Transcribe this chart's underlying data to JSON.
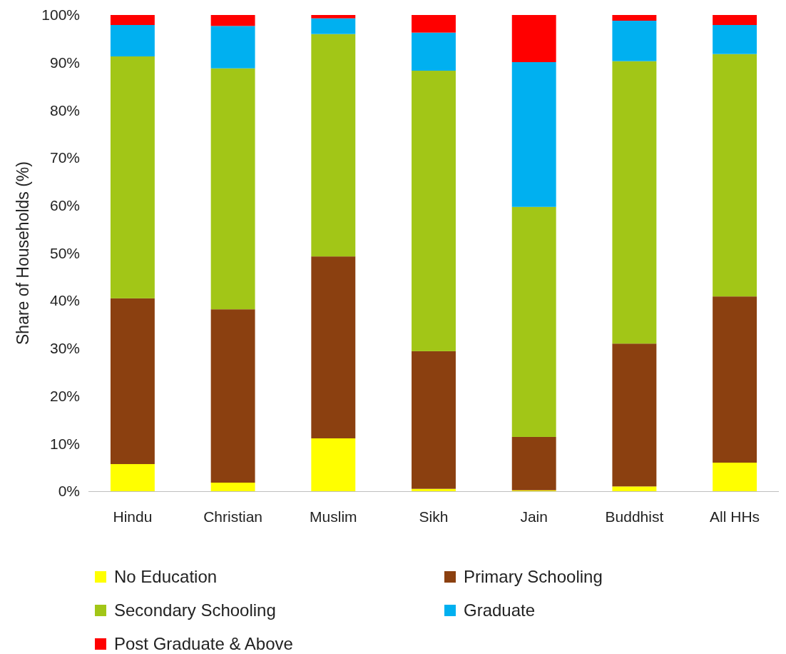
{
  "chart_data": {
    "type": "bar",
    "stacked": true,
    "ylabel": "Share of Households (%)",
    "categories": [
      "Hindu",
      "Christian",
      "Muslim",
      "Sikh",
      "Jain",
      "Buddhist",
      "All HHs"
    ],
    "series": [
      {
        "name": "No Education",
        "color": "#ffff00",
        "values": [
          5.7,
          1.8,
          11.1,
          0.5,
          0.2,
          1.0,
          6.0
        ]
      },
      {
        "name": "Primary Schooling",
        "color": "#8b4010",
        "values": [
          34.8,
          36.4,
          38.2,
          28.9,
          11.2,
          30.0,
          34.9
        ]
      },
      {
        "name": "Secondary Schooling",
        "color": "#a2c617",
        "values": [
          50.8,
          50.6,
          46.7,
          58.9,
          48.3,
          59.3,
          50.9
        ]
      },
      {
        "name": "Graduate",
        "color": "#00b0f0",
        "values": [
          6.6,
          8.9,
          3.3,
          8.0,
          30.4,
          8.5,
          6.1
        ]
      },
      {
        "name": "Post Graduate & Above",
        "color": "#ff0000",
        "values": [
          2.1,
          2.3,
          0.7,
          3.7,
          9.9,
          1.2,
          2.1
        ]
      }
    ],
    "ylim": [
      0,
      100
    ],
    "yticks": [
      {
        "value": 0,
        "label": "0%"
      },
      {
        "value": 10,
        "label": "10%"
      },
      {
        "value": 20,
        "label": "20%"
      },
      {
        "value": 30,
        "label": "30%"
      },
      {
        "value": 40,
        "label": "40%"
      },
      {
        "value": 50,
        "label": "50%"
      },
      {
        "value": 60,
        "label": "60%"
      },
      {
        "value": 70,
        "label": "70%"
      },
      {
        "value": 80,
        "label": "80%"
      },
      {
        "value": 90,
        "label": "90%"
      },
      {
        "value": 100,
        "label": "100%"
      }
    ],
    "grid": false,
    "legend": "bottom"
  }
}
